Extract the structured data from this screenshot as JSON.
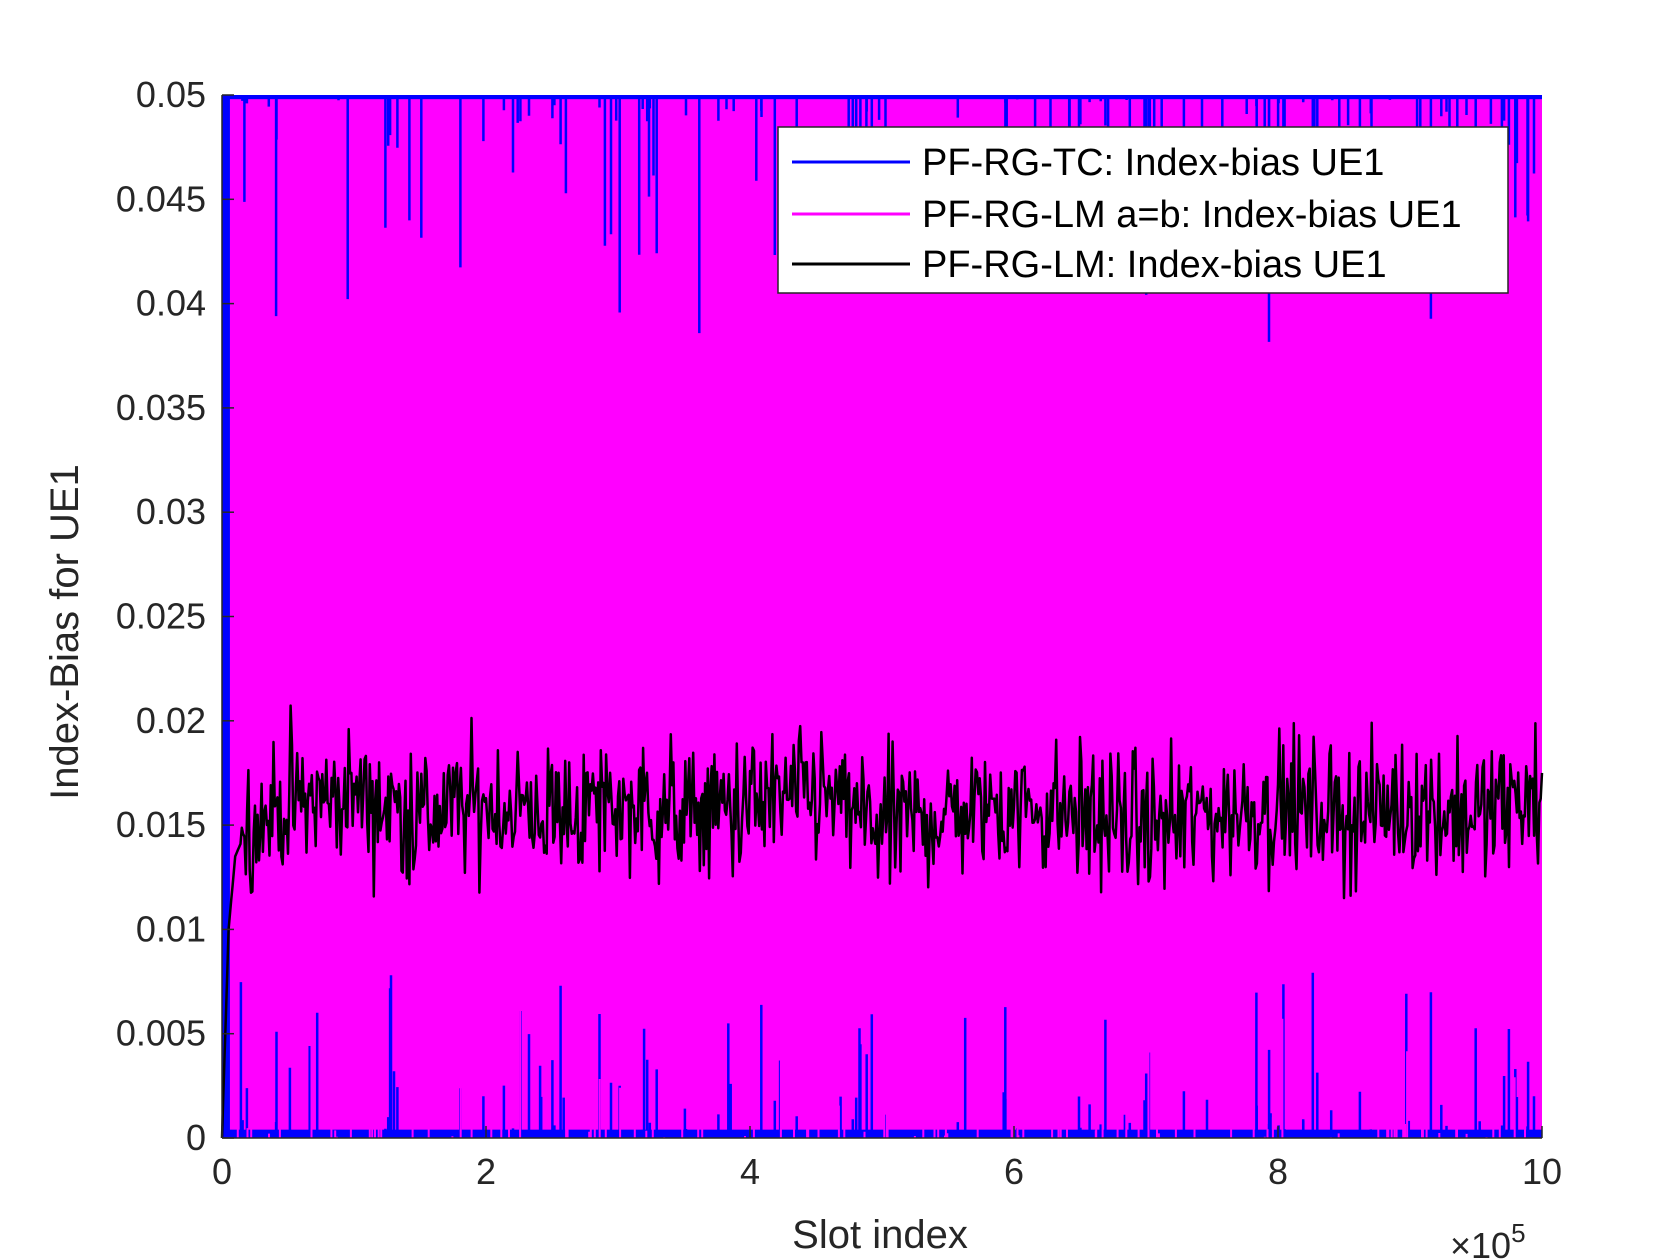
{
  "chart_data": {
    "type": "line",
    "xlabel": "Slot index",
    "ylabel": "Index-Bias for UE1",
    "x_exponent_label": "×10",
    "x_exponent_power": "5",
    "xlim": [
      0,
      10
    ],
    "ylim": [
      0,
      0.05
    ],
    "xticks": [
      0,
      2,
      4,
      6,
      8,
      10
    ],
    "xtick_labels": [
      "0",
      "2",
      "4",
      "6",
      "8",
      "10"
    ],
    "yticks": [
      0,
      0.005,
      0.01,
      0.015,
      0.02,
      0.025,
      0.03,
      0.035,
      0.04,
      0.045,
      0.05
    ],
    "ytick_labels": [
      "0",
      "0.005",
      "0.01",
      "0.015",
      "0.02",
      "0.025",
      "0.03",
      "0.035",
      "0.04",
      "0.045",
      "0.05"
    ],
    "grid": false,
    "legend_position": "top-right",
    "series": [
      {
        "name": "PF-RG-TC: Index-bias UE1",
        "color": "#0000ff",
        "style": "dense-oscillation",
        "value_range": [
          0,
          0.05
        ],
        "description_values": {
          "min": 0,
          "max": 0.05
        }
      },
      {
        "name": "PF-RG-LM a=b: Index-bias UE1",
        "color": "#ff00ff",
        "style": "dense-oscillation",
        "value_range": [
          0,
          0.05
        ]
      },
      {
        "name": "PF-RG-LM: Index-bias UE1",
        "color": "#000000",
        "style": "noisy-line",
        "mean": 0.0155,
        "x": [
          0,
          0.05,
          0.1,
          0.2,
          0.5,
          1,
          1.5,
          2,
          2.5,
          3,
          3.5,
          4,
          4.5,
          5,
          5.5,
          6,
          6.5,
          7,
          7.5,
          8,
          8.5,
          9,
          9.5,
          10
        ],
        "y": [
          0,
          0.01,
          0.0135,
          0.015,
          0.016,
          0.0165,
          0.0155,
          0.016,
          0.0155,
          0.016,
          0.0155,
          0.016,
          0.0165,
          0.015,
          0.0155,
          0.016,
          0.0155,
          0.015,
          0.0155,
          0.016,
          0.0155,
          0.016,
          0.0155,
          0.0165
        ]
      }
    ]
  }
}
